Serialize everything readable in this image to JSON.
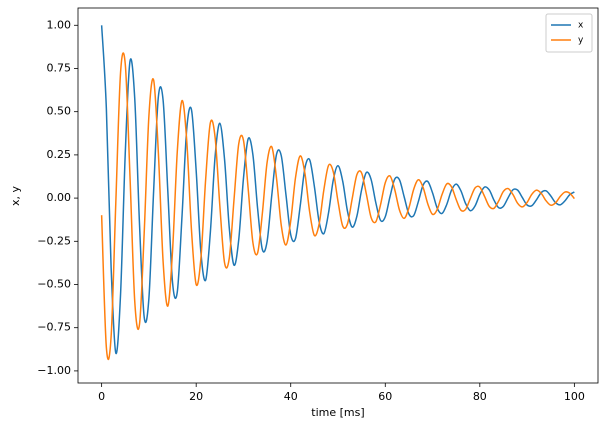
{
  "chart_data": {
    "type": "line",
    "xlabel": "time [ms]",
    "ylabel": "x, y",
    "x": [
      0,
      1,
      2,
      3,
      4,
      5,
      6,
      7,
      8,
      9,
      10,
      11,
      12,
      13,
      14,
      15,
      16,
      17,
      18,
      19,
      20,
      21,
      22,
      23,
      24,
      25,
      26,
      27,
      28,
      29,
      30,
      31,
      32,
      33,
      34,
      35,
      36,
      37,
      38,
      39,
      40,
      41,
      42,
      43,
      44,
      45,
      46,
      47,
      48,
      49,
      50,
      51,
      52,
      53,
      54,
      55,
      56,
      57,
      58,
      59,
      60,
      61,
      62,
      63,
      64,
      65,
      66,
      67,
      68,
      69,
      70,
      71,
      72,
      73,
      74,
      75,
      76,
      77,
      78,
      79,
      80,
      81,
      82,
      83,
      84,
      85,
      86,
      87,
      88,
      89,
      90,
      91,
      92,
      93,
      94,
      95,
      96,
      97,
      98,
      99,
      100
    ],
    "series": [
      {
        "name": "x",
        "color": "#1f77b4",
        "values": [
          1.0,
          0.518,
          -0.398,
          -0.897,
          -0.557,
          0.261,
          0.792,
          0.577,
          -0.143,
          -0.688,
          -0.579,
          0.043,
          0.586,
          0.567,
          0.039,
          -0.489,
          -0.544,
          -0.106,
          0.399,
          0.512,
          0.158,
          -0.315,
          -0.475,
          -0.197,
          0.24,
          0.433,
          0.224,
          -0.172,
          -0.388,
          -0.241,
          0.113,
          0.343,
          0.25,
          -0.062,
          -0.298,
          -0.251,
          0.019,
          0.254,
          0.245,
          0.017,
          -0.212,
          -0.235,
          -0.046,
          0.173,
          0.222,
          0.068,
          -0.136,
          -0.206,
          -0.085,
          0.104,
          0.187,
          0.097,
          -0.075,
          -0.168,
          -0.104,
          0.049,
          0.148,
          0.108,
          -0.027,
          -0.129,
          -0.108,
          0.008,
          0.11,
          0.106,
          0.007,
          -0.092,
          -0.102,
          -0.02,
          0.075,
          0.096,
          0.03,
          -0.059,
          -0.089,
          -0.037,
          0.045,
          0.081,
          0.042,
          -0.032,
          -0.073,
          -0.045,
          0.021,
          0.064,
          0.047,
          -0.012,
          -0.056,
          -0.047,
          0.003,
          0.048,
          0.046,
          0.003,
          -0.04,
          -0.044,
          -0.009,
          0.032,
          0.042,
          0.013,
          -0.026,
          -0.039,
          -0.016,
          0.019,
          0.035
        ]
      },
      {
        "name": "y",
        "color": "#ff7f0e",
        "values": [
          -0.099,
          -0.864,
          -0.803,
          -0.024,
          0.726,
          0.775,
          0.124,
          -0.596,
          -0.733,
          -0.203,
          0.476,
          0.683,
          0.262,
          -0.366,
          -0.625,
          -0.305,
          0.268,
          0.564,
          0.333,
          -0.182,
          -0.5,
          -0.348,
          0.107,
          0.436,
          0.352,
          -0.043,
          -0.374,
          -0.348,
          -0.01,
          0.314,
          0.335,
          0.054,
          -0.258,
          -0.317,
          -0.088,
          0.206,
          0.296,
          0.113,
          -0.158,
          -0.271,
          -0.132,
          0.116,
          0.244,
          0.144,
          -0.079,
          -0.216,
          -0.151,
          0.046,
          0.189,
          0.152,
          -0.019,
          -0.162,
          -0.15,
          -0.004,
          0.136,
          0.145,
          0.023,
          -0.112,
          -0.137,
          -0.038,
          0.089,
          0.128,
          0.049,
          -0.069,
          -0.117,
          -0.057,
          0.05,
          0.106,
          0.062,
          -0.034,
          -0.094,
          -0.065,
          0.02,
          0.082,
          0.066,
          -0.008,
          -0.07,
          -0.065,
          -0.002,
          0.059,
          0.063,
          0.01,
          -0.048,
          -0.059,
          -0.016,
          0.039,
          0.055,
          0.021,
          -0.03,
          -0.051,
          -0.025,
          0.022,
          0.046,
          0.027,
          -0.015,
          -0.041,
          -0.028,
          0.009,
          0.035,
          0.029,
          -0.003
        ]
      }
    ],
    "xlim": [
      -5,
      105
    ],
    "ylim": [
      -1.07,
      1.1
    ],
    "xticks": [
      0,
      20,
      40,
      60,
      80,
      100
    ],
    "yticks": [
      {
        "value": -1,
        "label": "−1.00"
      },
      {
        "value": -0.75,
        "label": "−0.75"
      },
      {
        "value": -0.5,
        "label": "−0.50"
      },
      {
        "value": -0.25,
        "label": "−0.25"
      },
      {
        "value": 0,
        "label": "0.00"
      },
      {
        "value": 0.25,
        "label": "0.25"
      },
      {
        "value": 0.5,
        "label": "0.50"
      },
      {
        "value": 0.75,
        "label": "0.75"
      },
      {
        "value": 1,
        "label": "1.00"
      }
    ],
    "grid": false,
    "legend": "upper right"
  }
}
